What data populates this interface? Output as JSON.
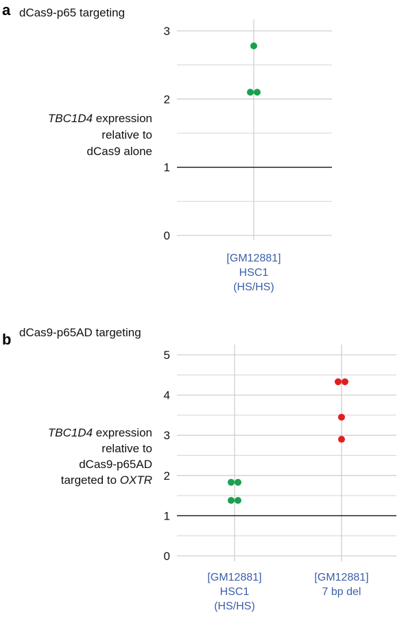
{
  "chart_data": [
    {
      "type": "scatter",
      "panel_label": "a",
      "title": "dCas9-p65 targeting",
      "ylabel_lines": [
        [
          {
            "text": "TBC1D4",
            "italic": true
          },
          {
            "text": " expression",
            "italic": false
          }
        ],
        [
          {
            "text": "relative to",
            "italic": false
          }
        ],
        [
          {
            "text": "dCas9 alone",
            "italic": false
          }
        ]
      ],
      "ylim": [
        0,
        3
      ],
      "yticks": [
        0,
        1,
        2,
        3
      ],
      "minor_grid": [
        0.5,
        1.5,
        2.5
      ],
      "reference_line": 1,
      "categories": [
        {
          "lines": [
            "[GM12881]",
            "HSC1",
            "(HS/HS)"
          ],
          "points": [
            {
              "y": 2.78,
              "offset": 0
            },
            {
              "y": 2.1,
              "offset": -1
            },
            {
              "y": 2.1,
              "offset": 1
            }
          ],
          "color": "#1aa050"
        }
      ]
    },
    {
      "type": "scatter",
      "panel_label": "b",
      "title": "dCas9-p65AD targeting",
      "ylabel_lines": [
        [
          {
            "text": "TBC1D4",
            "italic": true
          },
          {
            "text": " expression",
            "italic": false
          }
        ],
        [
          {
            "text": "relative to",
            "italic": false
          }
        ],
        [
          {
            "text": "dCas9-p65AD",
            "italic": false
          }
        ],
        [
          {
            "text": "targeted to ",
            "italic": false
          },
          {
            "text": "OXTR",
            "italic": true
          }
        ]
      ],
      "ylim": [
        0,
        5
      ],
      "yticks": [
        0,
        1,
        2,
        3,
        4,
        5
      ],
      "minor_grid": [
        0.5,
        1.5,
        2.5,
        3.5,
        4.5
      ],
      "reference_line": 1,
      "categories": [
        {
          "lines": [
            "[GM12881]",
            "HSC1",
            "(HS/HS)"
          ],
          "points": [
            {
              "y": 1.83,
              "offset": -1
            },
            {
              "y": 1.83,
              "offset": 1
            },
            {
              "y": 1.38,
              "offset": -1
            },
            {
              "y": 1.38,
              "offset": 1
            }
          ],
          "color": "#1aa050"
        },
        {
          "lines": [
            "[GM12881]",
            "7 bp del"
          ],
          "points": [
            {
              "y": 4.33,
              "offset": -1
            },
            {
              "y": 4.33,
              "offset": 1
            },
            {
              "y": 3.45,
              "offset": 0
            },
            {
              "y": 2.9,
              "offset": 0
            }
          ],
          "color": "#e02020"
        }
      ]
    }
  ]
}
